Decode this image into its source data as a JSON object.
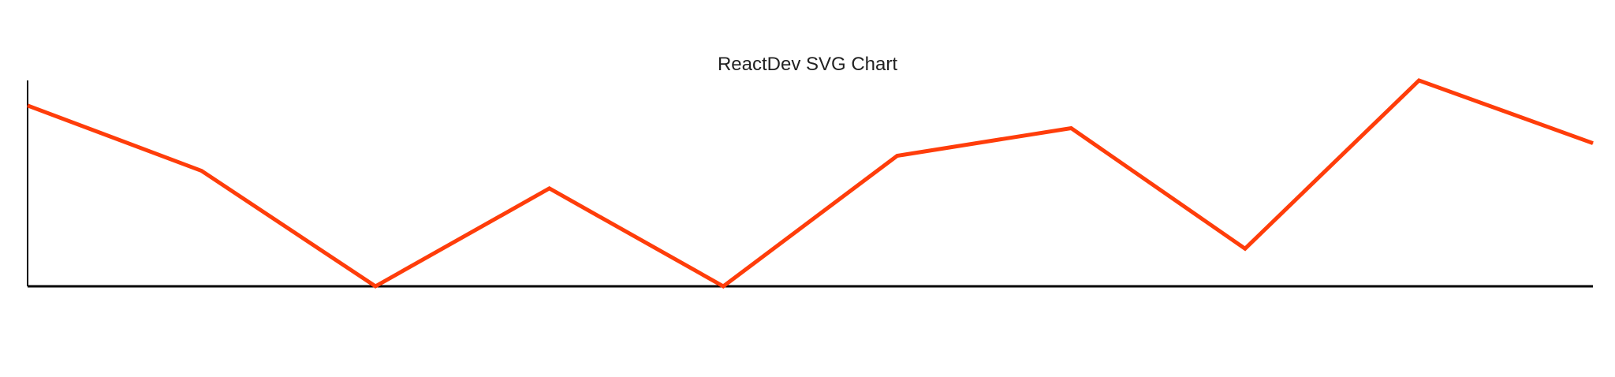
{
  "chart_data": {
    "type": "line",
    "title": "ReactDev SVG Chart",
    "xlabel": "",
    "ylabel": "",
    "x": [
      0,
      1,
      2,
      3,
      4,
      5,
      6,
      7,
      8,
      9
    ],
    "series": [
      {
        "values": [
          72,
          46,
          0,
          39,
          0,
          52,
          63,
          15,
          82,
          57
        ],
        "color": "#ff3d0a"
      }
    ],
    "xlim": [
      0,
      9
    ],
    "ylim": [
      0,
      82
    ],
    "grid": false,
    "legend": "none",
    "axis_color": "#000000"
  }
}
